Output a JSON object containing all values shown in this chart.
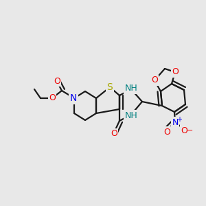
{
  "bg_color": "#e8e8e8",
  "bond_color": "#1a1a1a",
  "bond_width": 1.6,
  "atom_colors": {
    "S": "#a8a800",
    "N": "#0000ee",
    "O": "#ee0000",
    "NH": "#008080",
    "C": "#1a1a1a"
  },
  "fig_width": 3.0,
  "fig_height": 3.0,
  "dpi": 100
}
